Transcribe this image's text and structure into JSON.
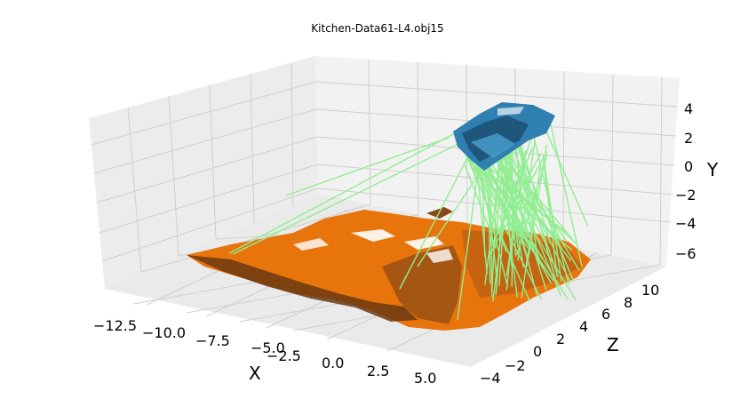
{
  "chart_data": {
    "type": "scatter",
    "title": "Kitchen-Data61-L4.obj15",
    "xlabel": "X",
    "ylabel": "Y",
    "zlabel": "Z",
    "x_ticks": [
      "−12.5",
      "−10.0",
      "−7.5",
      "−5.0",
      "−2.5",
      "0.0",
      "2.5",
      "5.0"
    ],
    "y_ticks": [
      "4",
      "2",
      "0",
      "−2",
      "−4",
      "−6"
    ],
    "z_ticks": [
      "−4",
      "−2",
      "0",
      "2",
      "4",
      "6",
      "8",
      "10"
    ],
    "xlim": [
      -13.5,
      6.5
    ],
    "ylim": [
      -7,
      5
    ],
    "zlim": [
      -5,
      11
    ],
    "grid": true,
    "series": [
      {
        "kind": "point-cloud",
        "color": "#e8740c",
        "shade": "#7a3d10",
        "region": "scene"
      },
      {
        "kind": "point-cloud",
        "color": "#2f7fb0",
        "shade": "#1c4f73",
        "region": "object"
      },
      {
        "kind": "correspondence-lines",
        "color": "#90ee90"
      }
    ]
  },
  "colors": {
    "pane": "#f2f2f2",
    "pane_dark": "#e9e9e9",
    "grid": "#d0d0d0"
  }
}
